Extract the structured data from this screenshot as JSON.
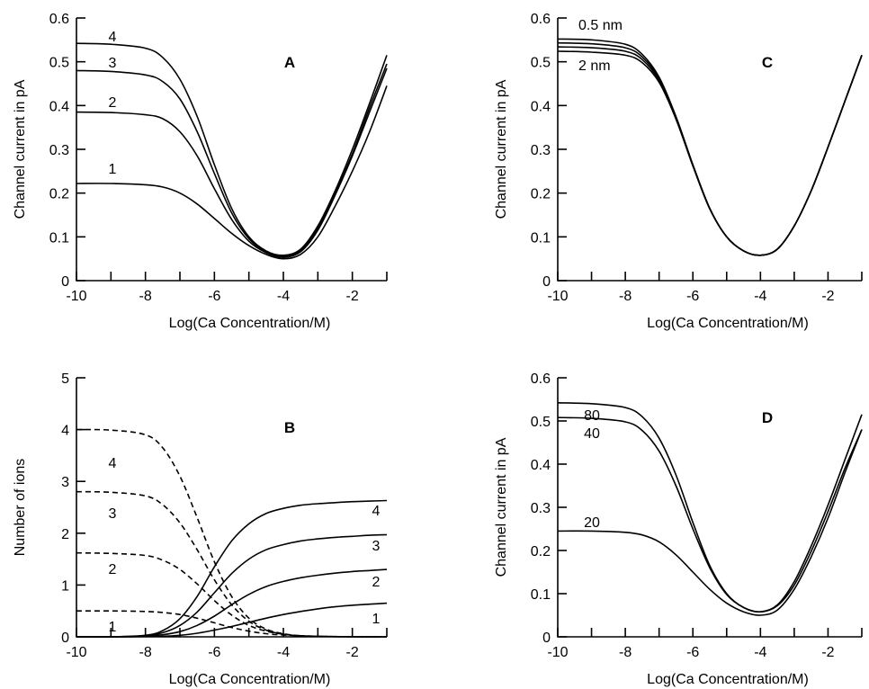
{
  "chart_data": [
    {
      "panel": "A",
      "type": "line",
      "xlabel": "Log(Ca Concentration/M)",
      "ylabel": "Channel current in pA",
      "xlim": [
        -10,
        -1
      ],
      "ylim": [
        0,
        0.6
      ],
      "xticks": [
        -10,
        -8,
        -6,
        -4,
        -2
      ],
      "yticks": [
        0,
        0.1,
        0.2,
        0.3,
        0.4,
        0.5,
        0.6
      ],
      "x": [
        -10,
        -9,
        -8,
        -7.5,
        -7,
        -6.5,
        -6,
        -5.5,
        -5,
        -4.5,
        -4,
        -3.5,
        -3,
        -2.5,
        -2,
        -1.5,
        -1
      ],
      "series": [
        {
          "name": "1",
          "style": "solid",
          "values": [
            0.222,
            0.222,
            0.219,
            0.214,
            0.2,
            0.175,
            0.142,
            0.108,
            0.08,
            0.06,
            0.05,
            0.06,
            0.1,
            0.17,
            0.25,
            0.34,
            0.445
          ]
        },
        {
          "name": "2",
          "style": "solid",
          "values": [
            0.385,
            0.384,
            0.379,
            0.37,
            0.34,
            0.285,
            0.21,
            0.14,
            0.09,
            0.064,
            0.053,
            0.066,
            0.115,
            0.195,
            0.285,
            0.385,
            0.485
          ]
        },
        {
          "name": "3",
          "style": "solid",
          "values": [
            0.48,
            0.478,
            0.47,
            0.455,
            0.415,
            0.34,
            0.245,
            0.155,
            0.096,
            0.066,
            0.055,
            0.069,
            0.12,
            0.2,
            0.29,
            0.395,
            0.495
          ]
        },
        {
          "name": "4",
          "style": "solid",
          "values": [
            0.542,
            0.54,
            0.531,
            0.51,
            0.46,
            0.375,
            0.265,
            0.165,
            0.1,
            0.068,
            0.058,
            0.072,
            0.125,
            0.205,
            0.3,
            0.405,
            0.515
          ]
        }
      ],
      "labels": [
        "1",
        "2",
        "3",
        "4"
      ]
    },
    {
      "panel": "B",
      "type": "line",
      "xlabel": "Log(Ca Concentration/M)",
      "ylabel": "Number of ions",
      "xlim": [
        -10,
        -1
      ],
      "ylim": [
        0,
        5
      ],
      "xticks": [
        -10,
        -8,
        -6,
        -4,
        -2
      ],
      "yticks": [
        0,
        1,
        2,
        3,
        4,
        5
      ],
      "x": [
        -10,
        -9,
        -8,
        -7.5,
        -7,
        -6.5,
        -6,
        -5.5,
        -5,
        -4.5,
        -4,
        -3.5,
        -3,
        -2.5,
        -2,
        -1.5,
        -1
      ],
      "series": [
        {
          "name": "1",
          "style": "dashed",
          "values": [
            0.5,
            0.5,
            0.49,
            0.47,
            0.43,
            0.36,
            0.27,
            0.18,
            0.11,
            0.06,
            0.035,
            0.02,
            0.01,
            0.005,
            0.003,
            0.001,
            0.0
          ]
        },
        {
          "name": "2",
          "style": "dashed",
          "values": [
            1.62,
            1.61,
            1.57,
            1.48,
            1.3,
            1.02,
            0.7,
            0.42,
            0.22,
            0.11,
            0.05,
            0.02,
            0.01,
            0.005,
            0.002,
            0.001,
            0.0
          ]
        },
        {
          "name": "3",
          "style": "dashed",
          "values": [
            2.8,
            2.79,
            2.72,
            2.55,
            2.2,
            1.68,
            1.1,
            0.62,
            0.3,
            0.13,
            0.05,
            0.02,
            0.01,
            0.004,
            0.002,
            0.001,
            0.0
          ]
        },
        {
          "name": "4",
          "style": "dashed",
          "values": [
            4.0,
            3.99,
            3.9,
            3.65,
            3.1,
            2.3,
            1.45,
            0.78,
            0.36,
            0.15,
            0.06,
            0.02,
            0.01,
            0.004,
            0.002,
            0.001,
            0.0
          ]
        },
        {
          "name": "1",
          "style": "solid",
          "values": [
            0.0,
            0.0,
            0.005,
            0.01,
            0.03,
            0.07,
            0.13,
            0.2,
            0.28,
            0.36,
            0.43,
            0.49,
            0.54,
            0.58,
            0.61,
            0.63,
            0.65
          ]
        },
        {
          "name": "2",
          "style": "solid",
          "values": [
            0.0,
            0.0,
            0.01,
            0.04,
            0.1,
            0.22,
            0.4,
            0.62,
            0.82,
            0.97,
            1.07,
            1.14,
            1.19,
            1.23,
            1.26,
            1.28,
            1.3
          ]
        },
        {
          "name": "3",
          "style": "solid",
          "values": [
            0.0,
            0.0,
            0.02,
            0.08,
            0.22,
            0.48,
            0.85,
            1.22,
            1.5,
            1.68,
            1.78,
            1.85,
            1.89,
            1.92,
            1.94,
            1.96,
            1.97
          ]
        },
        {
          "name": "4",
          "style": "solid",
          "values": [
            0.0,
            0.0,
            0.03,
            0.12,
            0.35,
            0.78,
            1.35,
            1.85,
            2.18,
            2.38,
            2.48,
            2.54,
            2.57,
            2.59,
            2.61,
            2.62,
            2.63
          ]
        }
      ],
      "labels": [
        "1",
        "2",
        "3",
        "4"
      ]
    },
    {
      "panel": "C",
      "type": "line",
      "xlabel": "Log(Ca Concentration/M)",
      "ylabel": "Channel current in pA",
      "xlim": [
        -10,
        -1
      ],
      "ylim": [
        0,
        0.6
      ],
      "xticks": [
        -10,
        -8,
        -6,
        -4,
        -2
      ],
      "yticks": [
        0,
        0.1,
        0.2,
        0.3,
        0.4,
        0.5,
        0.6
      ],
      "x": [
        -10,
        -9,
        -8,
        -7.5,
        -7,
        -6.5,
        -6,
        -5.5,
        -5,
        -4.5,
        -4,
        -3.5,
        -3,
        -2.5,
        -2,
        -1.5,
        -1
      ],
      "series": [
        {
          "name": "0.5 nm",
          "style": "solid",
          "values": [
            0.552,
            0.55,
            0.54,
            0.517,
            0.465,
            0.375,
            0.265,
            0.165,
            0.1,
            0.068,
            0.058,
            0.072,
            0.125,
            0.205,
            0.305,
            0.41,
            0.515
          ]
        },
        {
          "name": "",
          "style": "solid",
          "values": [
            0.543,
            0.541,
            0.532,
            0.511,
            0.461,
            0.373,
            0.264,
            0.165,
            0.1,
            0.068,
            0.058,
            0.072,
            0.125,
            0.205,
            0.305,
            0.41,
            0.515
          ]
        },
        {
          "name": "",
          "style": "solid",
          "values": [
            0.534,
            0.532,
            0.524,
            0.505,
            0.457,
            0.371,
            0.263,
            0.164,
            0.1,
            0.068,
            0.058,
            0.072,
            0.125,
            0.205,
            0.305,
            0.41,
            0.515
          ]
        },
        {
          "name": "2 nm",
          "style": "solid",
          "values": [
            0.524,
            0.522,
            0.515,
            0.498,
            0.453,
            0.369,
            0.262,
            0.164,
            0.1,
            0.068,
            0.058,
            0.072,
            0.125,
            0.205,
            0.305,
            0.41,
            0.515
          ]
        }
      ],
      "labels": [
        "0.5 nm",
        "2 nm"
      ]
    },
    {
      "panel": "D",
      "type": "line",
      "xlabel": "Log(Ca Concentration/M)",
      "ylabel": "Channel current in pA",
      "xlim": [
        -10,
        -1
      ],
      "ylim": [
        0,
        0.6
      ],
      "xticks": [
        -10,
        -8,
        -6,
        -4,
        -2
      ],
      "yticks": [
        0,
        0.1,
        0.2,
        0.3,
        0.4,
        0.5,
        0.6
      ],
      "x": [
        -10,
        -9,
        -8,
        -7.5,
        -7,
        -6.5,
        -6,
        -5.5,
        -5,
        -4.5,
        -4,
        -3.5,
        -3,
        -2.5,
        -2,
        -1.5,
        -1
      ],
      "series": [
        {
          "name": "20",
          "style": "solid",
          "values": [
            0.245,
            0.245,
            0.242,
            0.236,
            0.22,
            0.19,
            0.15,
            0.11,
            0.078,
            0.058,
            0.05,
            0.062,
            0.11,
            0.185,
            0.275,
            0.38,
            0.48
          ]
        },
        {
          "name": "40",
          "style": "solid",
          "values": [
            0.508,
            0.506,
            0.498,
            0.478,
            0.43,
            0.35,
            0.25,
            0.16,
            0.098,
            0.068,
            0.058,
            0.072,
            0.12,
            0.198,
            0.29,
            0.39,
            0.48
          ]
        },
        {
          "name": "80",
          "style": "solid",
          "values": [
            0.542,
            0.54,
            0.531,
            0.51,
            0.46,
            0.375,
            0.265,
            0.165,
            0.1,
            0.068,
            0.058,
            0.074,
            0.128,
            0.21,
            0.305,
            0.41,
            0.515
          ]
        }
      ],
      "labels": [
        "80",
        "40",
        "20"
      ]
    }
  ]
}
